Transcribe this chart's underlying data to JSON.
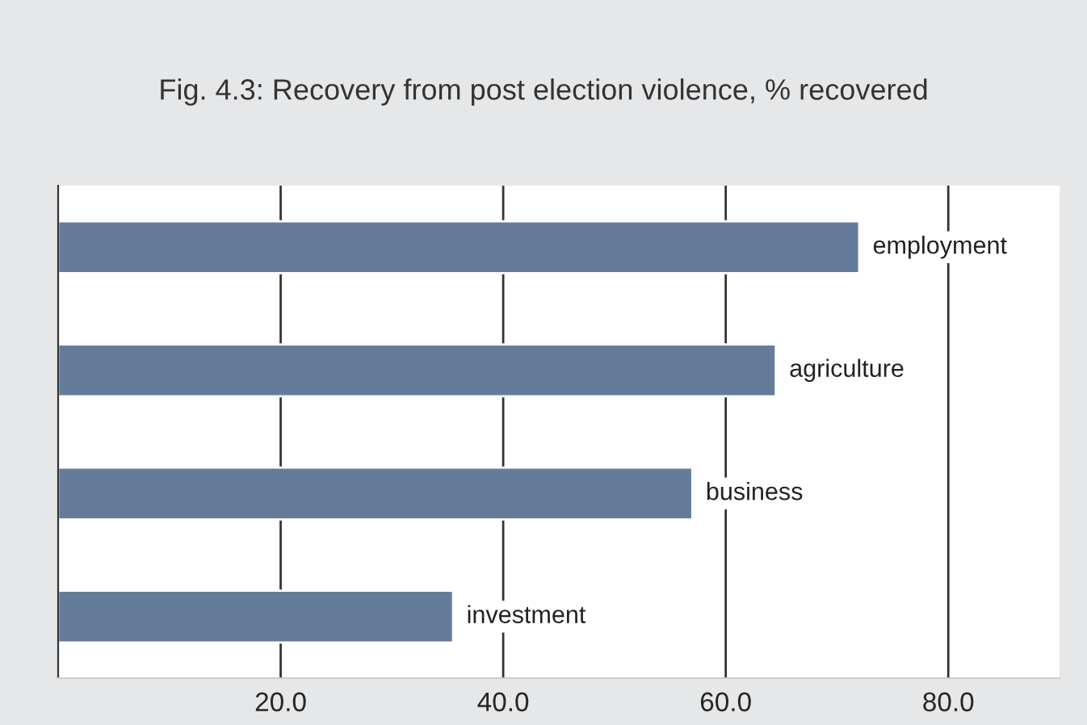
{
  "chart_data": {
    "type": "bar",
    "orientation": "horizontal",
    "title": "Fig. 4.3: Recovery from post election violence, % recovered",
    "categories": [
      "employment",
      "agriculture",
      "business",
      "investment"
    ],
    "values": [
      72,
      64.5,
      57,
      35.5
    ],
    "color": "#647c9a",
    "xlim": [
      0,
      90
    ],
    "xticks": [
      {
        "value": 20,
        "label": "20.0"
      },
      {
        "value": 40,
        "label": "40.0"
      },
      {
        "value": 60,
        "label": "60.0"
      },
      {
        "value": 80,
        "label": "80.0"
      }
    ],
    "grid": "x",
    "tick_labels": "x"
  }
}
